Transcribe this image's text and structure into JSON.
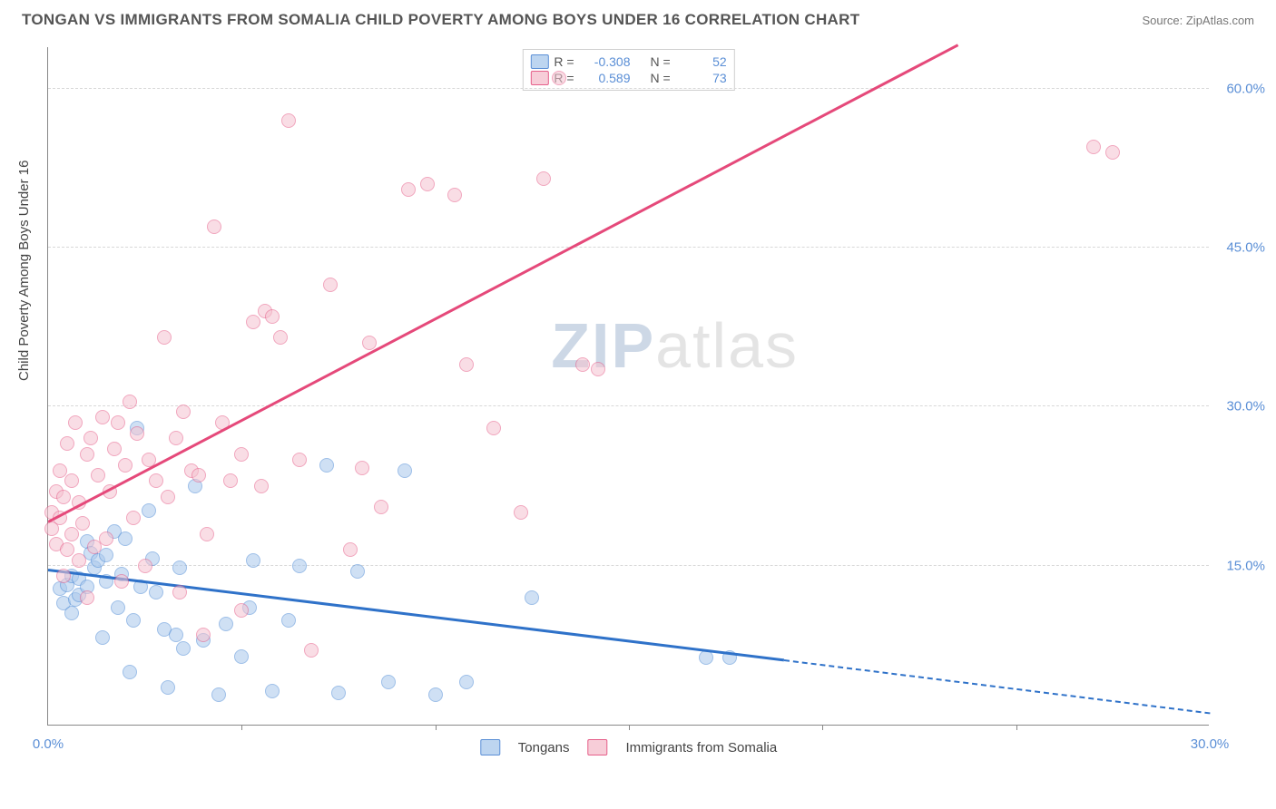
{
  "header": {
    "title": "TONGAN VS IMMIGRANTS FROM SOMALIA CHILD POVERTY AMONG BOYS UNDER 16 CORRELATION CHART",
    "source": "Source: ZipAtlas.com"
  },
  "chart": {
    "type": "scatter",
    "ylabel": "Child Poverty Among Boys Under 16",
    "xlim": [
      0,
      30
    ],
    "ylim": [
      0,
      64
    ],
    "y_ticks": [
      15,
      30,
      45,
      60
    ],
    "y_tick_labels": [
      "15.0%",
      "30.0%",
      "45.0%",
      "60.0%"
    ],
    "x_ticks": [
      0,
      30
    ],
    "x_tick_labels": [
      "0.0%",
      "30.0%"
    ],
    "x_minor_ticks": [
      5,
      10,
      15,
      20,
      25
    ],
    "background_color": "#ffffff",
    "grid_color": "#d8d8d8",
    "watermark": {
      "zip": "ZIP",
      "atlas": "atlas"
    },
    "series": [
      {
        "name": "Tongans",
        "color_fill": "#a9c8ec",
        "color_stroke": "#4f8cd6",
        "r_label": "R =",
        "r_value": "-0.308",
        "n_label": "N =",
        "n_value": "52",
        "trend": {
          "x1": 0,
          "y1": 14.5,
          "x2": 19,
          "y2": 6.0,
          "extend_x2": 30,
          "extend_y2": 1.0,
          "color": "#2f72c9"
        },
        "points": [
          [
            0.3,
            12.8
          ],
          [
            0.4,
            11.5
          ],
          [
            0.5,
            13.2
          ],
          [
            0.6,
            14.0
          ],
          [
            0.6,
            10.5
          ],
          [
            0.7,
            11.8
          ],
          [
            0.8,
            13.8
          ],
          [
            0.8,
            12.2
          ],
          [
            1.0,
            17.3
          ],
          [
            1.0,
            13.0
          ],
          [
            1.1,
            16.2
          ],
          [
            1.2,
            14.8
          ],
          [
            1.3,
            15.5
          ],
          [
            1.4,
            8.2
          ],
          [
            1.5,
            16.0
          ],
          [
            1.5,
            13.5
          ],
          [
            1.7,
            18.2
          ],
          [
            1.8,
            11.0
          ],
          [
            1.9,
            14.2
          ],
          [
            2.0,
            17.5
          ],
          [
            2.1,
            5.0
          ],
          [
            2.2,
            9.8
          ],
          [
            2.3,
            28.0
          ],
          [
            2.4,
            13.0
          ],
          [
            2.6,
            20.2
          ],
          [
            2.7,
            15.7
          ],
          [
            2.8,
            12.5
          ],
          [
            3.0,
            9.0
          ],
          [
            3.1,
            3.5
          ],
          [
            3.3,
            8.5
          ],
          [
            3.4,
            14.8
          ],
          [
            3.5,
            7.2
          ],
          [
            3.8,
            22.5
          ],
          [
            4.0,
            8.0
          ],
          [
            4.4,
            2.8
          ],
          [
            4.6,
            9.5
          ],
          [
            5.0,
            6.4
          ],
          [
            5.2,
            11.0
          ],
          [
            5.3,
            15.5
          ],
          [
            5.8,
            3.2
          ],
          [
            6.2,
            9.8
          ],
          [
            6.5,
            15.0
          ],
          [
            7.2,
            24.5
          ],
          [
            7.5,
            3.0
          ],
          [
            8.0,
            14.5
          ],
          [
            8.8,
            4.0
          ],
          [
            9.2,
            24.0
          ],
          [
            10.0,
            2.8
          ],
          [
            10.8,
            4.0
          ],
          [
            12.5,
            12.0
          ],
          [
            17.0,
            6.3
          ],
          [
            17.6,
            6.3
          ]
        ]
      },
      {
        "name": "Immigrants from Somalia",
        "color_fill": "#f5c3d0",
        "color_stroke": "#e65f8a",
        "r_label": "R =",
        "r_value": "0.589",
        "n_label": "N =",
        "n_value": "73",
        "trend": {
          "x1": 0,
          "y1": 19.0,
          "x2": 23.5,
          "y2": 64.0,
          "color": "#e5497a"
        },
        "points": [
          [
            0.1,
            20.0
          ],
          [
            0.1,
            18.5
          ],
          [
            0.2,
            22.0
          ],
          [
            0.2,
            17.0
          ],
          [
            0.3,
            19.5
          ],
          [
            0.3,
            24.0
          ],
          [
            0.4,
            21.5
          ],
          [
            0.4,
            14.0
          ],
          [
            0.5,
            16.5
          ],
          [
            0.5,
            26.5
          ],
          [
            0.6,
            23.0
          ],
          [
            0.6,
            18.0
          ],
          [
            0.7,
            28.5
          ],
          [
            0.8,
            15.5
          ],
          [
            0.8,
            21.0
          ],
          [
            0.9,
            19.0
          ],
          [
            1.0,
            25.5
          ],
          [
            1.0,
            12.0
          ],
          [
            1.1,
            27.0
          ],
          [
            1.2,
            16.8
          ],
          [
            1.3,
            23.5
          ],
          [
            1.4,
            29.0
          ],
          [
            1.5,
            17.5
          ],
          [
            1.6,
            22.0
          ],
          [
            1.7,
            26.0
          ],
          [
            1.8,
            28.5
          ],
          [
            1.9,
            13.5
          ],
          [
            2.0,
            24.5
          ],
          [
            2.1,
            30.5
          ],
          [
            2.2,
            19.5
          ],
          [
            2.3,
            27.5
          ],
          [
            2.5,
            15.0
          ],
          [
            2.6,
            25.0
          ],
          [
            2.8,
            23.0
          ],
          [
            3.0,
            36.5
          ],
          [
            3.1,
            21.5
          ],
          [
            3.3,
            27.0
          ],
          [
            3.4,
            12.5
          ],
          [
            3.5,
            29.5
          ],
          [
            3.7,
            24.0
          ],
          [
            3.9,
            23.5
          ],
          [
            4.0,
            8.5
          ],
          [
            4.1,
            18.0
          ],
          [
            4.3,
            47.0
          ],
          [
            4.5,
            28.5
          ],
          [
            4.7,
            23.0
          ],
          [
            5.0,
            25.5
          ],
          [
            5.0,
            10.8
          ],
          [
            5.3,
            38.0
          ],
          [
            5.5,
            22.5
          ],
          [
            5.6,
            39.0
          ],
          [
            5.8,
            38.5
          ],
          [
            6.0,
            36.5
          ],
          [
            6.2,
            57.0
          ],
          [
            6.5,
            25.0
          ],
          [
            6.8,
            7.0
          ],
          [
            7.3,
            41.5
          ],
          [
            7.8,
            16.5
          ],
          [
            8.1,
            24.2
          ],
          [
            8.3,
            36.0
          ],
          [
            8.6,
            20.5
          ],
          [
            9.3,
            50.5
          ],
          [
            9.8,
            51.0
          ],
          [
            10.5,
            50.0
          ],
          [
            10.8,
            34.0
          ],
          [
            11.5,
            28.0
          ],
          [
            12.2,
            20.0
          ],
          [
            12.8,
            51.5
          ],
          [
            13.2,
            61.0
          ],
          [
            13.8,
            34.0
          ],
          [
            14.2,
            33.5
          ],
          [
            27.0,
            54.5
          ],
          [
            27.5,
            54.0
          ]
        ]
      }
    ]
  }
}
